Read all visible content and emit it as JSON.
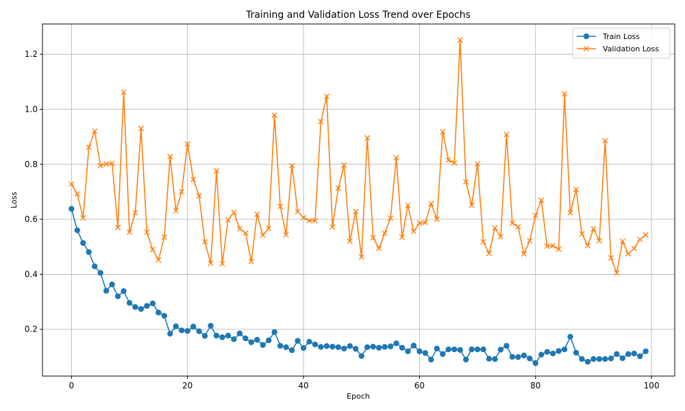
{
  "chart_data": {
    "type": "line",
    "title": "Training and Validation Loss Trend over Epochs",
    "xlabel": "Epoch",
    "ylabel": "Loss",
    "xlim": [
      -5.0,
      104.0
    ],
    "ylim": [
      0.03,
      1.31
    ],
    "xticks": [
      0,
      20,
      40,
      60,
      80,
      100
    ],
    "yticks": [
      0.2,
      0.4,
      0.6,
      0.8,
      1.0,
      1.2
    ],
    "grid": true,
    "legend_position": "top-right",
    "x": [
      0,
      1,
      2,
      3,
      4,
      5,
      6,
      7,
      8,
      9,
      10,
      11,
      12,
      13,
      14,
      15,
      16,
      17,
      18,
      19,
      20,
      21,
      22,
      23,
      24,
      25,
      26,
      27,
      28,
      29,
      30,
      31,
      32,
      33,
      34,
      35,
      36,
      37,
      38,
      39,
      40,
      41,
      42,
      43,
      44,
      45,
      46,
      47,
      48,
      49,
      50,
      51,
      52,
      53,
      54,
      55,
      56,
      57,
      58,
      59,
      60,
      61,
      62,
      63,
      64,
      65,
      66,
      67,
      68,
      69,
      70,
      71,
      72,
      73,
      74,
      75,
      76,
      77,
      78,
      79,
      80,
      81,
      82,
      83,
      84,
      85,
      86,
      87,
      88,
      89,
      90,
      91,
      92,
      93,
      94,
      95,
      96,
      97,
      98,
      99
    ],
    "series": [
      {
        "name": "Train Loss",
        "color": "#1f77b4",
        "marker": "circle",
        "values": [
          0.638,
          0.56,
          0.514,
          0.481,
          0.429,
          0.405,
          0.34,
          0.363,
          0.32,
          0.339,
          0.296,
          0.281,
          0.274,
          0.285,
          0.294,
          0.261,
          0.249,
          0.184,
          0.211,
          0.196,
          0.194,
          0.21,
          0.193,
          0.176,
          0.213,
          0.177,
          0.171,
          0.177,
          0.164,
          0.185,
          0.167,
          0.153,
          0.162,
          0.143,
          0.16,
          0.19,
          0.14,
          0.135,
          0.124,
          0.158,
          0.132,
          0.155,
          0.145,
          0.136,
          0.139,
          0.137,
          0.135,
          0.13,
          0.139,
          0.129,
          0.103,
          0.135,
          0.137,
          0.133,
          0.136,
          0.138,
          0.149,
          0.133,
          0.12,
          0.141,
          0.12,
          0.114,
          0.09,
          0.13,
          0.11,
          0.127,
          0.127,
          0.125,
          0.09,
          0.127,
          0.127,
          0.127,
          0.093,
          0.092,
          0.126,
          0.14,
          0.1,
          0.099,
          0.105,
          0.094,
          0.077,
          0.108,
          0.118,
          0.112,
          0.121,
          0.127,
          0.173,
          0.115,
          0.092,
          0.082,
          0.092,
          0.092,
          0.092,
          0.094,
          0.11,
          0.095,
          0.11,
          0.112,
          0.102,
          0.12
        ]
      },
      {
        "name": "Validation Loss",
        "color": "#ff7f0e",
        "marker": "x",
        "values": [
          0.728,
          0.692,
          0.605,
          0.862,
          0.92,
          0.795,
          0.801,
          0.803,
          0.57,
          1.062,
          0.553,
          0.624,
          0.93,
          0.553,
          0.49,
          0.452,
          0.535,
          0.828,
          0.631,
          0.7,
          0.874,
          0.745,
          0.685,
          0.518,
          0.44,
          0.776,
          0.438,
          0.598,
          0.625,
          0.566,
          0.55,
          0.447,
          0.618,
          0.542,
          0.567,
          0.978,
          0.647,
          0.544,
          0.795,
          0.628,
          0.606,
          0.595,
          0.595,
          0.955,
          1.047,
          0.572,
          0.713,
          0.797,
          0.52,
          0.628,
          0.463,
          0.896,
          0.533,
          0.494,
          0.549,
          0.604,
          0.824,
          0.535,
          0.65,
          0.556,
          0.586,
          0.588,
          0.657,
          0.6,
          0.918,
          0.815,
          0.804,
          1.252,
          0.736,
          0.651,
          0.801,
          0.518,
          0.476,
          0.568,
          0.537,
          0.908,
          0.586,
          0.573,
          0.474,
          0.522,
          0.614,
          0.669,
          0.502,
          0.504,
          0.491,
          1.056,
          0.624,
          0.708,
          0.547,
          0.504,
          0.565,
          0.522,
          0.886,
          0.46,
          0.405,
          0.52,
          0.474,
          0.494,
          0.527,
          0.543
        ]
      }
    ]
  }
}
